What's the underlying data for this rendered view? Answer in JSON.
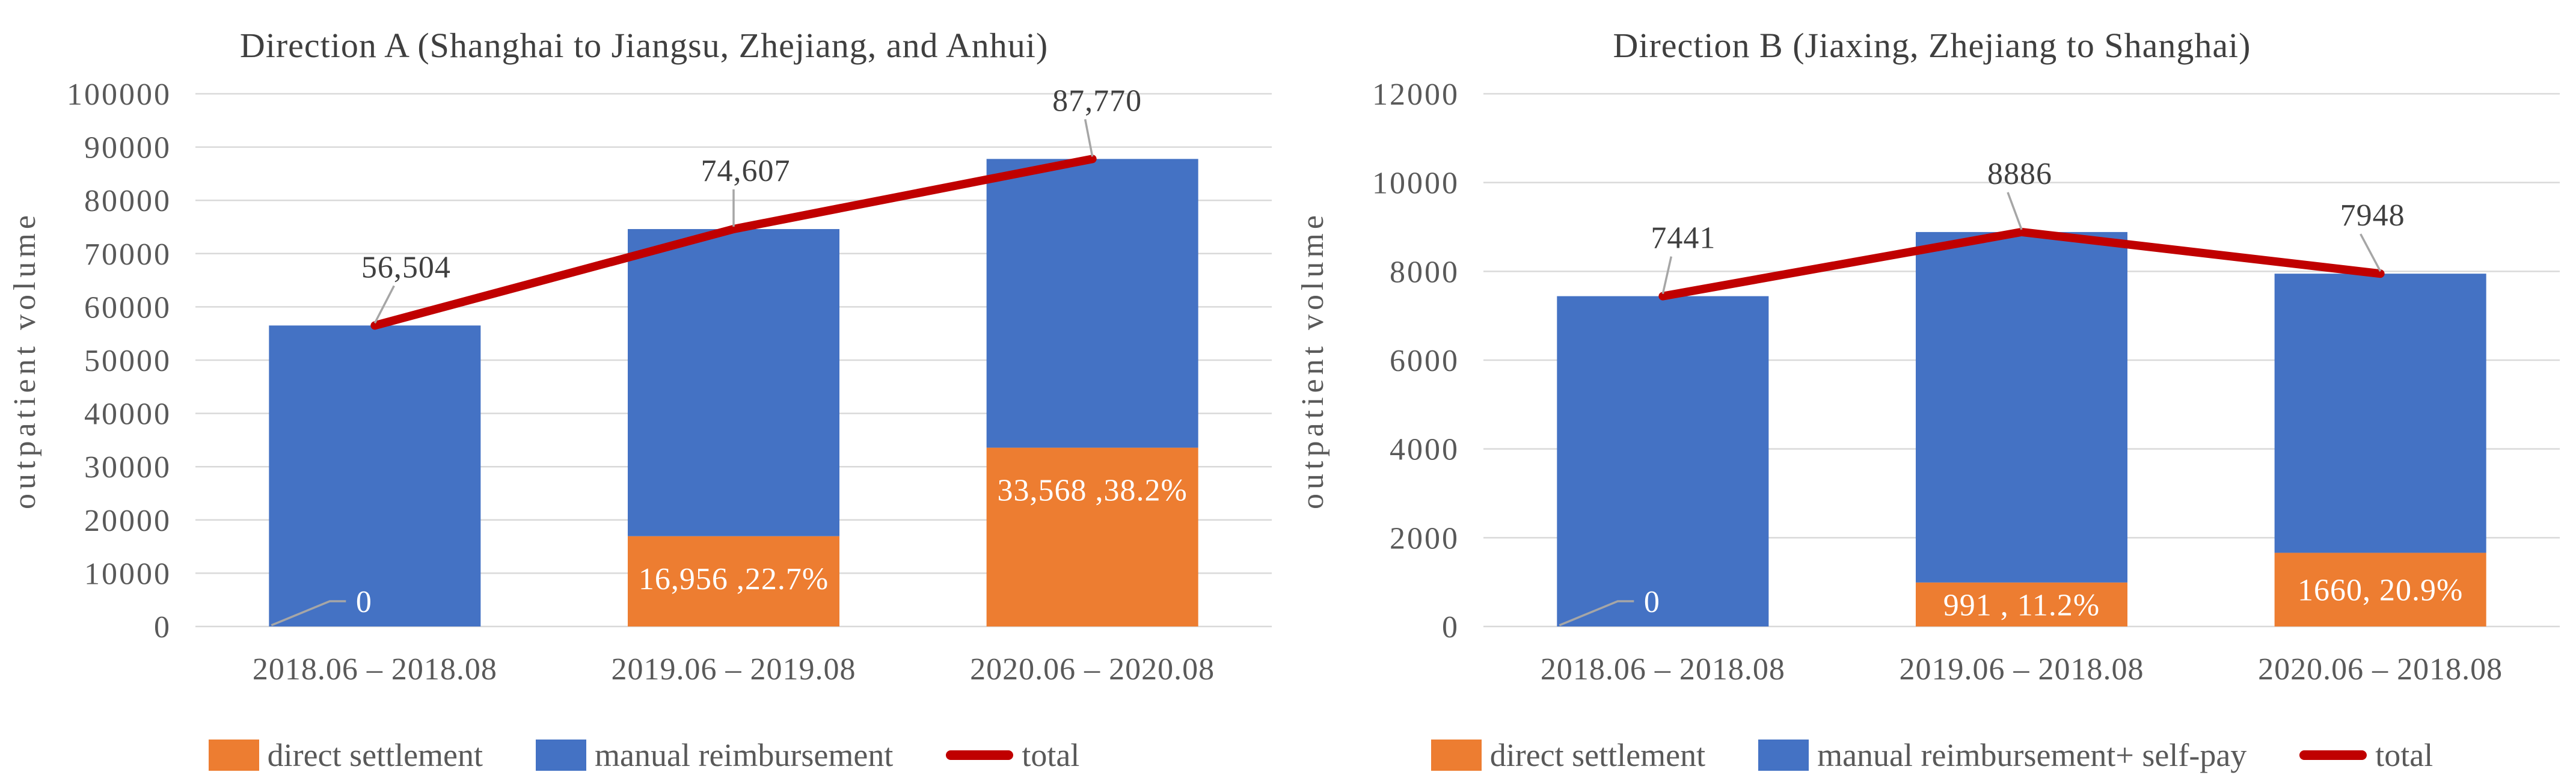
{
  "colors": {
    "background": "#FFFFFF",
    "bar_blue": "#4472C4",
    "bar_orange": "#ED7D31",
    "line_red": "#C00000",
    "gridline": "#D9D9D9",
    "axis_text": "#595959",
    "title_text": "#3F3F3F",
    "data_label_text": "#404040",
    "data_label_inside": "#FFFFFF",
    "leader_line": "#A6A6A6"
  },
  "chart_data": [
    {
      "type": "bar",
      "subtype": "stacked-bar-with-total-line",
      "title": "Direction A (Shanghai to Jiangsu, Zhejiang, and Anhui)",
      "xlabel": "",
      "ylabel": "outpatient volume",
      "ylim": [
        0,
        100000
      ],
      "ytick_step": 10000,
      "grid": true,
      "legend_position": "bottom",
      "categories": [
        "2018.06 – 2018.08",
        "2019.06 – 2019.08",
        "2020.06 – 2020.08"
      ],
      "series": [
        {
          "name": "direct settlement",
          "color": "#ED7D31",
          "values": [
            0,
            16956,
            33568
          ],
          "data_labels": [
            "0",
            "16,956 ,22.7%",
            "33,568 ,38.2%"
          ]
        },
        {
          "name": "manual reimbursement",
          "color": "#4472C4",
          "values": [
            56504,
            57651,
            54202
          ]
        }
      ],
      "line_series": {
        "name": "total",
        "color": "#C00000",
        "values": [
          56504,
          74607,
          87770
        ],
        "data_labels": [
          "56,504",
          "74,607",
          "87,770"
        ]
      },
      "legend": [
        {
          "label": "direct settlement",
          "swatch": "square",
          "color": "#ED7D31"
        },
        {
          "label": "manual reimbursement",
          "swatch": "square",
          "color": "#4472C4"
        },
        {
          "label": "total",
          "swatch": "line",
          "color": "#C00000"
        }
      ]
    },
    {
      "type": "bar",
      "subtype": "stacked-bar-with-total-line",
      "title": "Direction B (Jiaxing, Zhejiang to Shanghai)",
      "xlabel": "",
      "ylabel": "outpatient volume",
      "ylim": [
        0,
        12000
      ],
      "ytick_step": 2000,
      "grid": true,
      "legend_position": "bottom",
      "categories": [
        "2018.06 – 2018.08",
        "2019.06 – 2018.08",
        "2020.06 – 2018.08"
      ],
      "series": [
        {
          "name": "direct settlement",
          "color": "#ED7D31",
          "values": [
            0,
            991,
            1660
          ],
          "data_labels": [
            "0",
            "991 , 11.2%",
            "1660, 20.9%"
          ]
        },
        {
          "name": "manual reimbursement+ self-pay",
          "color": "#4472C4",
          "values": [
            7441,
            7895,
            6288
          ]
        }
      ],
      "line_series": {
        "name": "total",
        "color": "#C00000",
        "values": [
          7441,
          8886,
          7948
        ],
        "data_labels": [
          "7441",
          "8886",
          "7948"
        ]
      },
      "legend": [
        {
          "label": "direct settlement",
          "swatch": "square",
          "color": "#ED7D31"
        },
        {
          "label": "manual reimbursement+ self-pay",
          "swatch": "square",
          "color": "#4472C4"
        },
        {
          "label": "total",
          "swatch": "line",
          "color": "#C00000"
        }
      ]
    }
  ]
}
